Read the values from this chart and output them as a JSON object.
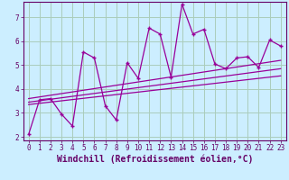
{
  "xlabel": "Windchill (Refroidissement éolien,°C)",
  "bg_color": "#cceeff",
  "line_color": "#990099",
  "grid_color": "#aaccbb",
  "axis_color": "#660066",
  "text_color": "#660066",
  "xlim": [
    -0.5,
    23.5
  ],
  "ylim": [
    1.85,
    7.65
  ],
  "yticks": [
    2,
    3,
    4,
    5,
    6,
    7
  ],
  "xticks": [
    0,
    1,
    2,
    3,
    4,
    5,
    6,
    7,
    8,
    9,
    10,
    11,
    12,
    13,
    14,
    15,
    16,
    17,
    18,
    19,
    20,
    21,
    22,
    23
  ],
  "main_x": [
    0,
    1,
    2,
    3,
    4,
    5,
    6,
    7,
    8,
    9,
    10,
    11,
    12,
    13,
    14,
    15,
    16,
    17,
    18,
    19,
    20,
    21,
    22,
    23
  ],
  "main_y": [
    2.1,
    3.55,
    3.6,
    2.95,
    2.45,
    5.55,
    5.3,
    3.3,
    2.7,
    5.1,
    4.45,
    6.55,
    6.3,
    4.5,
    7.55,
    6.3,
    6.5,
    5.05,
    4.85,
    5.3,
    5.35,
    4.9,
    6.05,
    5.8
  ],
  "trend1_x": [
    0,
    23
  ],
  "trend1_y": [
    3.6,
    5.2
  ],
  "trend2_x": [
    0,
    23
  ],
  "trend2_y": [
    3.45,
    4.85
  ],
  "trend3_x": [
    0,
    23
  ],
  "trend3_y": [
    3.35,
    4.55
  ],
  "tick_fontsize": 5.5,
  "xlabel_fontsize": 7.0
}
